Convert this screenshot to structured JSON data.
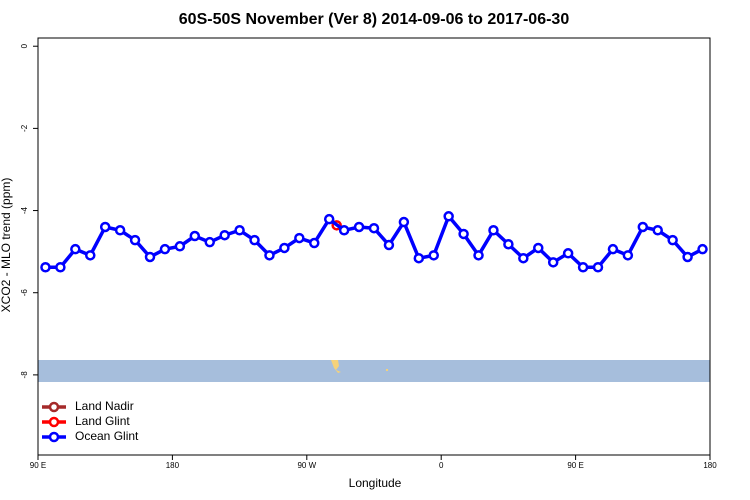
{
  "chart_data": {
    "type": "line",
    "title": "60S-50S November (Ver 8)   2014-09-06 to 2017-06-30",
    "xlabel": "Longitude",
    "ylabel": "XCO2 - MLO trend (ppm)",
    "xlim": [
      90,
      540
    ],
    "ylim": [
      -9.95,
      0.2
    ],
    "xticks": [
      {
        "value": 90,
        "label": "90 E"
      },
      180,
      {
        "value": 270,
        "label": "90 W"
      },
      {
        "value": 360,
        "label": "0"
      },
      {
        "value": 450,
        "label": "90 E"
      },
      {
        "value": 540,
        "label": "180"
      }
    ],
    "yticks": [
      0,
      -2,
      -4,
      -6,
      -8
    ],
    "legend": "bottom-left",
    "series": [
      {
        "name": "Land Nadir",
        "color": "#a52a2a",
        "x": [],
        "values": []
      },
      {
        "name": "Land Glint",
        "color": "#ff0000",
        "x": [
          290
        ],
        "values": [
          -4.36
        ]
      },
      {
        "name": "Ocean Glint",
        "color": "#0000ff",
        "x": [
          95,
          105,
          115,
          125,
          135,
          145,
          155,
          165,
          175,
          185,
          195,
          205,
          215,
          225,
          235,
          245,
          255,
          265,
          275,
          285,
          295,
          305,
          315,
          325,
          335,
          345,
          355,
          365,
          375,
          385,
          395,
          405,
          415,
          425,
          435,
          445,
          455,
          465,
          475,
          485,
          495,
          505,
          515,
          525,
          535
        ],
        "values": [
          -5.38,
          -5.38,
          -4.94,
          -5.09,
          -4.4,
          -4.48,
          -4.72,
          -5.13,
          -4.94,
          -4.87,
          -4.62,
          -4.77,
          -4.6,
          -4.48,
          -4.72,
          -5.09,
          -4.91,
          -4.67,
          -4.79,
          -4.21,
          -4.48,
          -4.4,
          -4.43,
          -4.84,
          -4.28,
          -5.16,
          -5.09,
          -4.14,
          -4.57,
          -5.09,
          -4.48,
          -4.82,
          -5.16,
          -4.91,
          -5.26,
          -5.04,
          -5.38,
          -5.38,
          -4.94,
          -5.09,
          -4.4,
          -4.48,
          -4.72,
          -5.13,
          -4.94
        ]
      }
    ]
  }
}
